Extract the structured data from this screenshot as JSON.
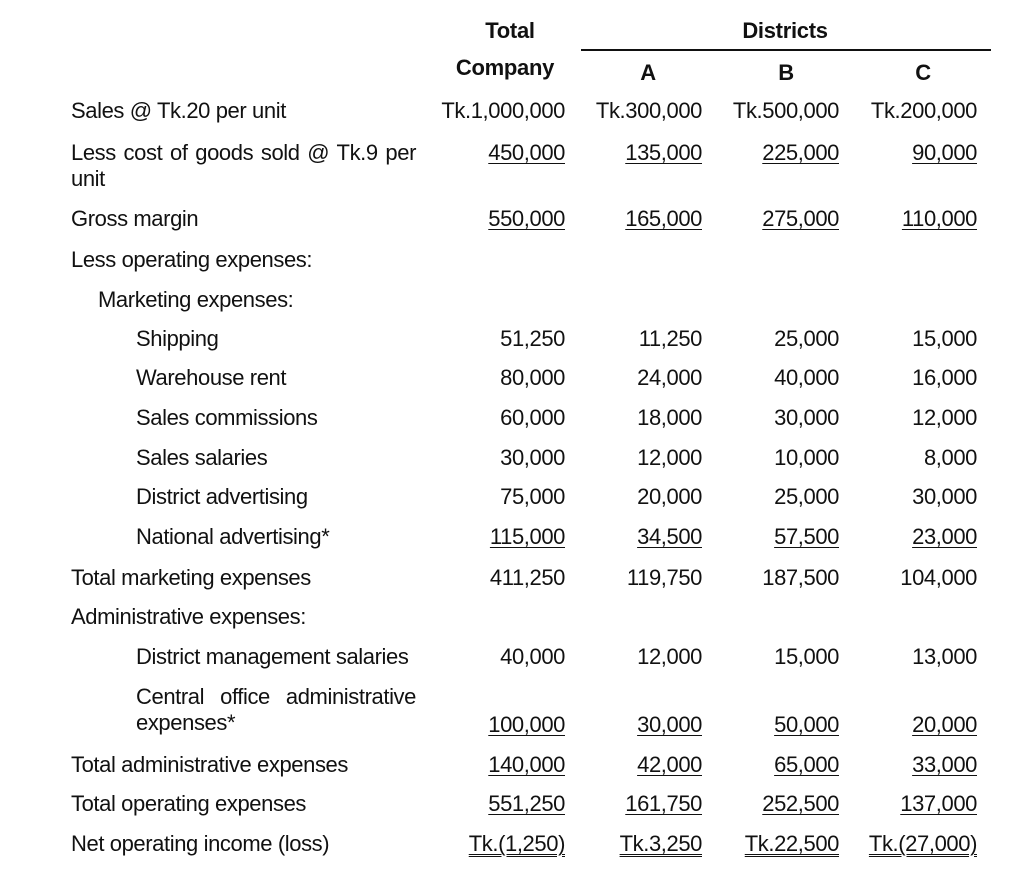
{
  "headers": {
    "total_line1": "Total",
    "total_line2": "Company",
    "districts": "Districts",
    "district_a": "A",
    "district_b": "B",
    "district_c": "C"
  },
  "rows": [
    {
      "label": "Sales @ Tk.20 per unit",
      "total": "Tk.1,000,000",
      "a": "Tk.300,000",
      "b": "Tk.500,000",
      "c": "Tk.200,000"
    },
    {
      "label": "Less cost of goods sold @ Tk.9 per unit",
      "total": "450,000",
      "a": "135,000",
      "b": "225,000",
      "c": "90,000"
    },
    {
      "label": "Gross margin",
      "total": "550,000",
      "a": "165,000",
      "b": "275,000",
      "c": "110,000"
    },
    {
      "label": "Less operating expenses:"
    },
    {
      "label": "Marketing expenses:"
    },
    {
      "label": "Shipping",
      "total": "51,250",
      "a": "11,250",
      "b": "25,000",
      "c": "15,000"
    },
    {
      "label": "Warehouse rent",
      "total": "80,000",
      "a": "24,000",
      "b": "40,000",
      "c": "16,000"
    },
    {
      "label": "Sales commissions",
      "total": "60,000",
      "a": "18,000",
      "b": "30,000",
      "c": "12,000"
    },
    {
      "label": "Sales salaries",
      "total": "30,000",
      "a": "12,000",
      "b": "10,000",
      "c": "8,000"
    },
    {
      "label": "District advertising",
      "total": "75,000",
      "a": "20,000",
      "b": "25,000",
      "c": "30,000"
    },
    {
      "label": "National advertising*",
      "total": "115,000",
      "a": "34,500",
      "b": "57,500",
      "c": "23,000"
    },
    {
      "label": "Total marketing expenses",
      "total": "411,250",
      "a": "119,750",
      "b": "187,500",
      "c": "104,000"
    },
    {
      "label": "Administrative expenses:"
    },
    {
      "label": "District management salaries",
      "total": "40,000",
      "a": "12,000",
      "b": "15,000",
      "c": "13,000"
    },
    {
      "label": "Central office administrative expenses*",
      "total": "100,000",
      "a": "30,000",
      "b": "50,000",
      "c": "20,000"
    },
    {
      "label": "Total administrative expenses",
      "total": "140,000",
      "a": "42,000",
      "b": "65,000",
      "c": "33,000"
    },
    {
      "label": "Total operating expenses",
      "total": "551,250",
      "a": "161,750",
      "b": "252,500",
      "c": "137,000"
    },
    {
      "label": "Net operating income (loss)",
      "total": "Tk.(1,250)",
      "a": "Tk.3,250",
      "b": "Tk.22,500",
      "c": "Tk.(27,000)"
    }
  ]
}
